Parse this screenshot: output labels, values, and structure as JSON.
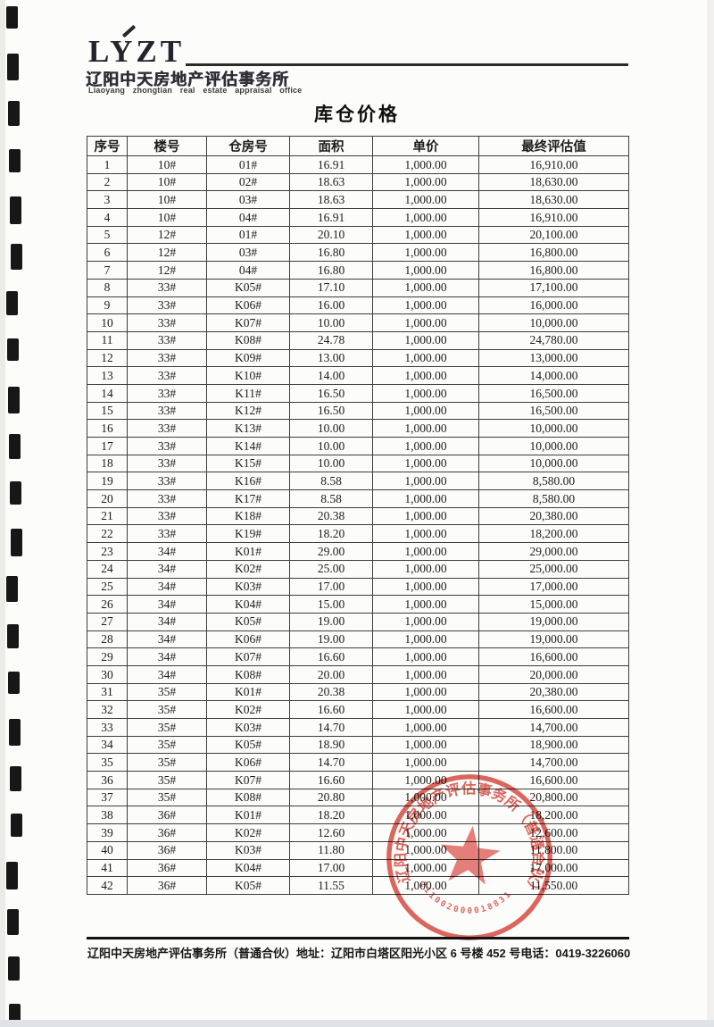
{
  "logo": {
    "text": "LYZT",
    "company_cn": "辽阳中天房地产评估事务所",
    "company_en": "Liaoyang zhongtian real estate appraisal office"
  },
  "title": "库仓价格",
  "table": {
    "headers": [
      "序号",
      "楼号",
      "仓房号",
      "面积",
      "单价",
      "最终评估值"
    ],
    "rows": [
      [
        "1",
        "10#",
        "01#",
        "16.91",
        "1,000.00",
        "16,910.00"
      ],
      [
        "2",
        "10#",
        "02#",
        "18.63",
        "1,000.00",
        "18,630.00"
      ],
      [
        "3",
        "10#",
        "03#",
        "18.63",
        "1,000.00",
        "18,630.00"
      ],
      [
        "4",
        "10#",
        "04#",
        "16.91",
        "1,000.00",
        "16,910.00"
      ],
      [
        "5",
        "12#",
        "01#",
        "20.10",
        "1,000.00",
        "20,100.00"
      ],
      [
        "6",
        "12#",
        "03#",
        "16.80",
        "1,000.00",
        "16,800.00"
      ],
      [
        "7",
        "12#",
        "04#",
        "16.80",
        "1,000.00",
        "16,800.00"
      ],
      [
        "8",
        "33#",
        "K05#",
        "17.10",
        "1,000.00",
        "17,100.00"
      ],
      [
        "9",
        "33#",
        "K06#",
        "16.00",
        "1,000.00",
        "16,000.00"
      ],
      [
        "10",
        "33#",
        "K07#",
        "10.00",
        "1,000.00",
        "10,000.00"
      ],
      [
        "11",
        "33#",
        "K08#",
        "24.78",
        "1,000.00",
        "24,780.00"
      ],
      [
        "12",
        "33#",
        "K09#",
        "13.00",
        "1,000.00",
        "13,000.00"
      ],
      [
        "13",
        "33#",
        "K10#",
        "14.00",
        "1,000.00",
        "14,000.00"
      ],
      [
        "14",
        "33#",
        "K11#",
        "16.50",
        "1,000.00",
        "16,500.00"
      ],
      [
        "15",
        "33#",
        "K12#",
        "16.50",
        "1,000.00",
        "16,500.00"
      ],
      [
        "16",
        "33#",
        "K13#",
        "10.00",
        "1,000.00",
        "10,000.00"
      ],
      [
        "17",
        "33#",
        "K14#",
        "10.00",
        "1,000.00",
        "10,000.00"
      ],
      [
        "18",
        "33#",
        "K15#",
        "10.00",
        "1,000.00",
        "10,000.00"
      ],
      [
        "19",
        "33#",
        "K16#",
        "8.58",
        "1,000.00",
        "8,580.00"
      ],
      [
        "20",
        "33#",
        "K17#",
        "8.58",
        "1,000.00",
        "8,580.00"
      ],
      [
        "21",
        "33#",
        "K18#",
        "20.38",
        "1,000.00",
        "20,380.00"
      ],
      [
        "22",
        "33#",
        "K19#",
        "18.20",
        "1,000.00",
        "18,200.00"
      ],
      [
        "23",
        "34#",
        "K01#",
        "29.00",
        "1,000.00",
        "29,000.00"
      ],
      [
        "24",
        "34#",
        "K02#",
        "25.00",
        "1,000.00",
        "25,000.00"
      ],
      [
        "25",
        "34#",
        "K03#",
        "17.00",
        "1,000.00",
        "17,000.00"
      ],
      [
        "26",
        "34#",
        "K04#",
        "15.00",
        "1,000.00",
        "15,000.00"
      ],
      [
        "27",
        "34#",
        "K05#",
        "19.00",
        "1,000.00",
        "19,000.00"
      ],
      [
        "28",
        "34#",
        "K06#",
        "19.00",
        "1,000.00",
        "19,000.00"
      ],
      [
        "29",
        "34#",
        "K07#",
        "16.60",
        "1,000.00",
        "16,600.00"
      ],
      [
        "30",
        "34#",
        "K08#",
        "20.00",
        "1,000.00",
        "20,000.00"
      ],
      [
        "31",
        "35#",
        "K01#",
        "20.38",
        "1,000.00",
        "20,380.00"
      ],
      [
        "32",
        "35#",
        "K02#",
        "16.60",
        "1,000.00",
        "16,600.00"
      ],
      [
        "33",
        "35#",
        "K03#",
        "14.70",
        "1,000.00",
        "14,700.00"
      ],
      [
        "34",
        "35#",
        "K05#",
        "18.90",
        "1,000.00",
        "18,900.00"
      ],
      [
        "35",
        "35#",
        "K06#",
        "14.70",
        "1,000.00",
        "14,700.00"
      ],
      [
        "36",
        "35#",
        "K07#",
        "16.60",
        "1,000.00",
        "16,600.00"
      ],
      [
        "37",
        "35#",
        "K08#",
        "20.80",
        "1,000.00",
        "20,800.00"
      ],
      [
        "38",
        "36#",
        "K01#",
        "18.20",
        "1,000.00",
        "18,200.00"
      ],
      [
        "39",
        "36#",
        "K02#",
        "12.60",
        "1,000.00",
        "12,600.00"
      ],
      [
        "40",
        "36#",
        "K03#",
        "11.80",
        "1,000.00",
        "11,800.00"
      ],
      [
        "41",
        "36#",
        "K04#",
        "17.00",
        "1,000.00",
        "17,000.00"
      ],
      [
        "42",
        "36#",
        "K05#",
        "11.55",
        "1,000.00",
        "11,550.00"
      ]
    ]
  },
  "seal": {
    "ring_text": "辽阳中天房地产评估事务所（普通合伙）",
    "number": "211002000018831",
    "color": "#d6453c",
    "star_color": "#e2635c"
  },
  "footer": {
    "company": "辽阳中天房地产评估事务所（普通合伙）",
    "address": "地址：辽阳市白塔区阳光小区 6 号楼 452 号",
    "phone": "电话：0419-3226060"
  }
}
